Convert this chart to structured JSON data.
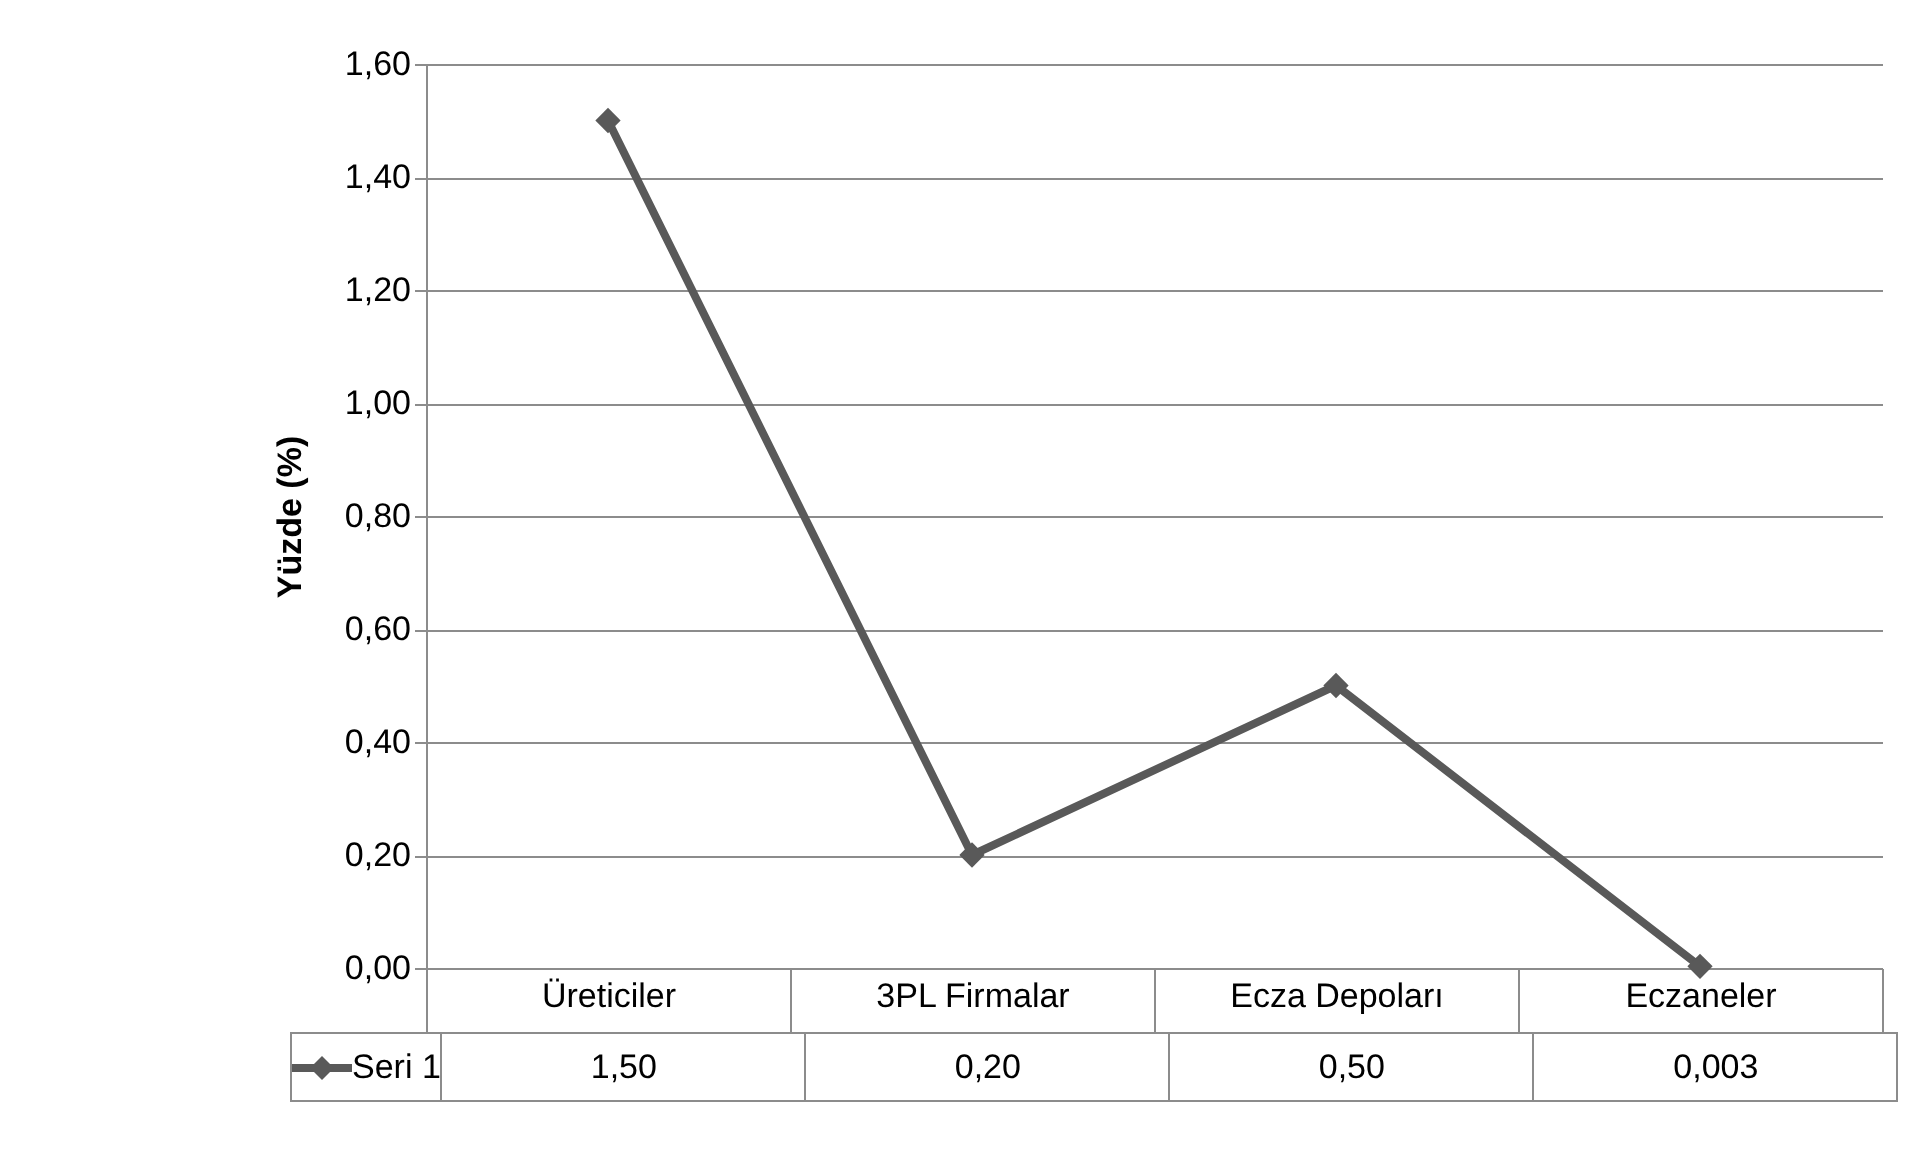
{
  "chart_data": {
    "type": "line",
    "ylabel": "Yüzde (%)",
    "categories": [
      "Üreticiler",
      "3PL Firmalar",
      "Ecza Depoları",
      "Eczaneler"
    ],
    "series": [
      {
        "name": "Seri 1",
        "color": "#595959",
        "values": [
          1.5,
          0.2,
          0.5,
          0.003
        ],
        "value_labels": [
          "1,50",
          "0,20",
          "0,50",
          "0,003"
        ]
      }
    ],
    "ylim": [
      0,
      1.6
    ],
    "yticks": [
      {
        "value": 0,
        "label": "0,00"
      },
      {
        "value": 0.2,
        "label": "0,20"
      },
      {
        "value": 0.4,
        "label": "0,40"
      },
      {
        "value": 0.6,
        "label": "0,60"
      },
      {
        "value": 0.8,
        "label": "0,80"
      },
      {
        "value": 1,
        "label": "1,00"
      },
      {
        "value": 1.2,
        "label": "1,20"
      },
      {
        "value": 1.4,
        "label": "1,40"
      },
      {
        "value": 1.6,
        "label": "1,60"
      }
    ],
    "grid": "y",
    "legend": "bottom",
    "marker": "diamond",
    "line_style": "solid"
  }
}
